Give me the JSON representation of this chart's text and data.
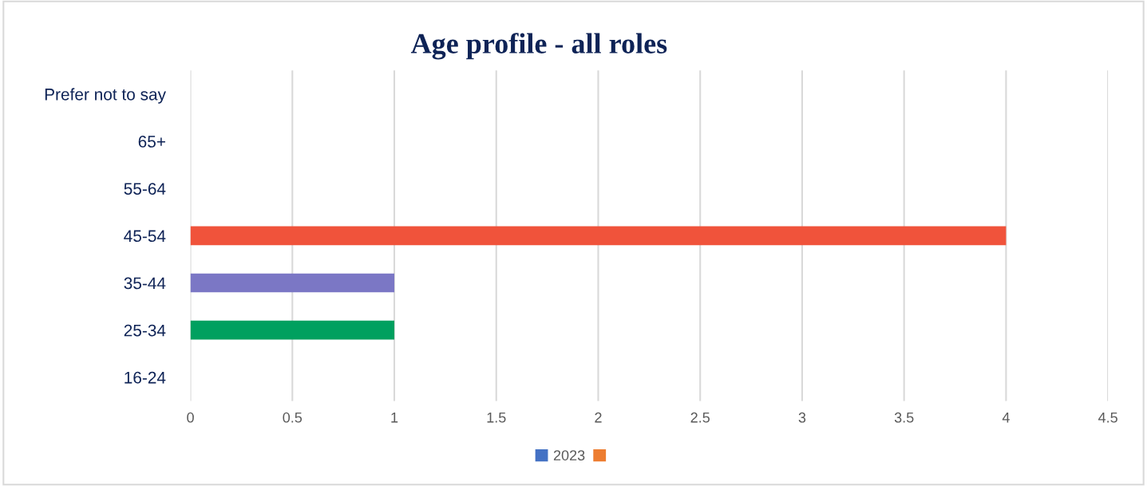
{
  "chart_data": {
    "type": "bar",
    "orientation": "horizontal",
    "title": "Age profile - all roles",
    "categories": [
      "Prefer not to say",
      "65+",
      "55-64",
      "45-54",
      "35-44",
      "25-34",
      "16-24"
    ],
    "series": [
      {
        "name": "2023",
        "color": "#4472c4",
        "colors": [
          "#4472c4",
          "#4472c4",
          "#4472c4",
          "#f0533b",
          "#7b77c5",
          "#00a05f",
          "#4472c4"
        ],
        "values": [
          0,
          0,
          0,
          4,
          1,
          1,
          0
        ]
      },
      {
        "color": "#ed7d31",
        "values": [
          null,
          null,
          null,
          null,
          null,
          null,
          null
        ]
      }
    ],
    "xlim": [
      0,
      4.5
    ],
    "xticks": [
      0,
      0.5,
      1,
      1.5,
      2,
      2.5,
      3,
      3.5,
      4,
      4.5
    ],
    "grid": "x",
    "legend": "bottom"
  }
}
